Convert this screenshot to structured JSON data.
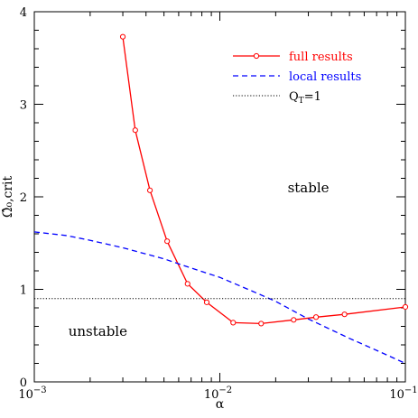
{
  "chart_data": {
    "type": "line",
    "xlabel": "α",
    "ylabel": "Ω̂₀,crit",
    "xscale": "log",
    "xlim": [
      0.001,
      0.1
    ],
    "ylim": [
      0,
      4
    ],
    "x_ticks": [
      {
        "value": 0.001,
        "base": "10",
        "exp": "−3"
      },
      {
        "value": 0.01,
        "base": "10",
        "exp": "−2"
      },
      {
        "value": 0.1,
        "base": "10",
        "exp": "−1"
      }
    ],
    "y_ticks": [
      0,
      1,
      2,
      3,
      4
    ],
    "legend_position": "top-right",
    "series": [
      {
        "name": "full results",
        "color": "#ff0000",
        "style": "solid",
        "marker": "open-circle",
        "x": [
          0.003,
          0.0035,
          0.0042,
          0.0052,
          0.0067,
          0.0085,
          0.0118,
          0.0167,
          0.025,
          0.033,
          0.047,
          0.1
        ],
        "y": [
          3.73,
          2.72,
          2.07,
          1.52,
          1.06,
          0.86,
          0.64,
          0.63,
          0.67,
          0.7,
          0.73,
          0.81
        ]
      },
      {
        "name": "local results",
        "color": "#0000ff",
        "style": "dashed",
        "x": [
          0.001,
          0.0015,
          0.002,
          0.003,
          0.005,
          0.007,
          0.01,
          0.015,
          0.02,
          0.03,
          0.05,
          0.07,
          0.1
        ],
        "y": [
          1.62,
          1.58,
          1.53,
          1.45,
          1.33,
          1.23,
          1.13,
          0.98,
          0.87,
          0.68,
          0.47,
          0.34,
          0.2
        ]
      },
      {
        "name": "Q_T=1",
        "color": "#000000",
        "style": "dotted",
        "x": [
          0.001,
          0.1
        ],
        "y": [
          0.9,
          0.9
        ]
      }
    ],
    "legend": [
      {
        "label": "full results",
        "color": "#ff0000",
        "style": "solid",
        "marker": true
      },
      {
        "label": "local results",
        "color": "#0000ff",
        "style": "dashed",
        "marker": false
      },
      {
        "label_base": "Q",
        "label_sub": "T",
        "label_rest": "=1",
        "color": "#000000",
        "style": "dotted",
        "marker": false
      }
    ],
    "annotations": [
      {
        "text": "stable",
        "x": 0.03,
        "y": 2.05
      },
      {
        "text": "unstable",
        "x": 0.0022,
        "y": 0.5
      }
    ]
  }
}
